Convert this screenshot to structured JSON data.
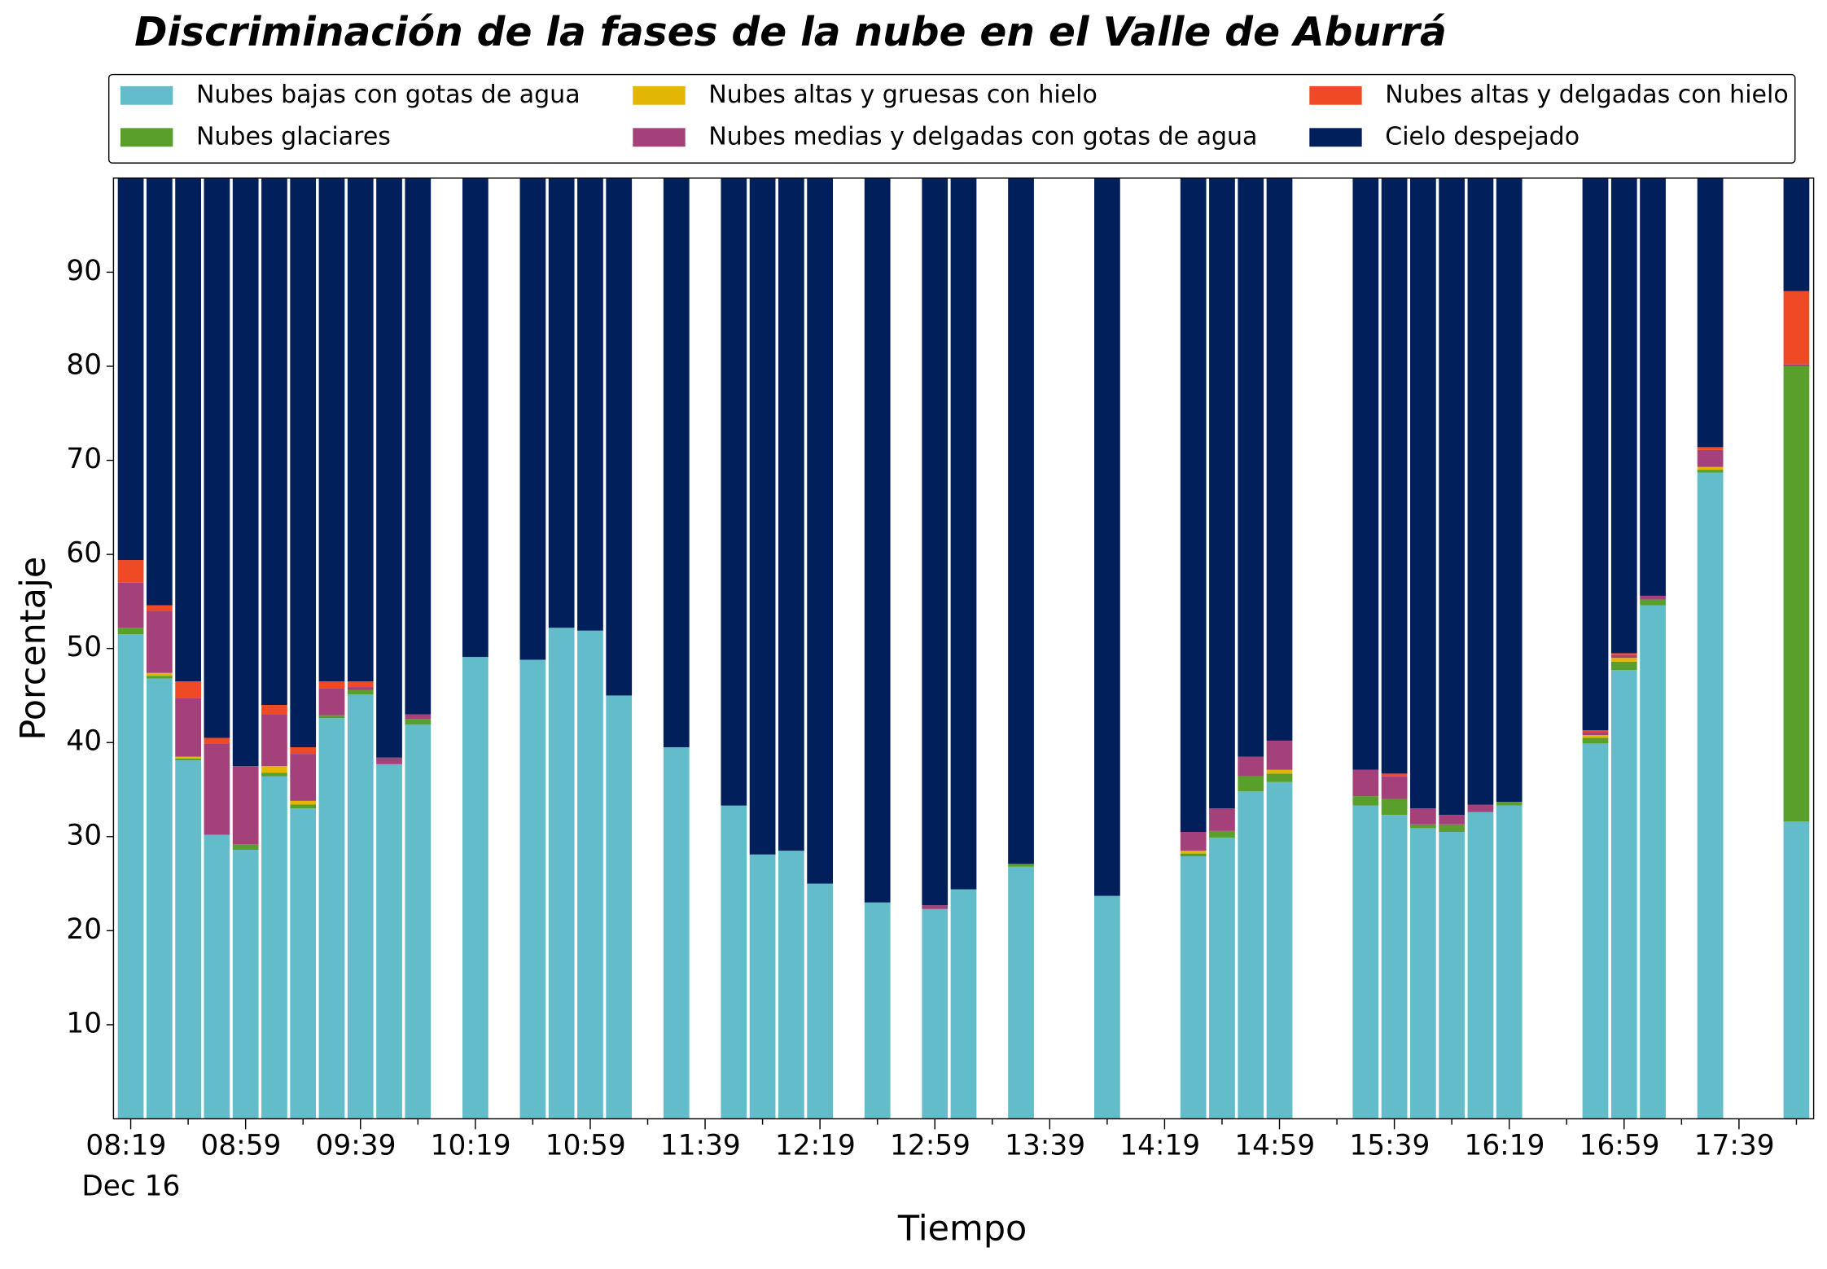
{
  "chart_data": {
    "type": "stacked_bar",
    "title": "Discriminación de la fases de la nube en el Valle de Aburrá",
    "x_label": "Tiempo",
    "y_label": "Porcentaje",
    "x_date_label": "Dec 16",
    "categories": [
      "08:19",
      null,
      null,
      null,
      "08:59",
      null,
      null,
      null,
      "09:39",
      null,
      null,
      null,
      "10:19",
      null,
      null,
      null,
      "10:59",
      null,
      null,
      null,
      "11:39",
      null,
      null,
      null,
      "12:19",
      null,
      null,
      null,
      "12:59",
      null,
      null,
      null,
      "13:39",
      null,
      null,
      null,
      "14:19",
      null,
      null,
      null,
      "14:59",
      null,
      null,
      null,
      "15:39",
      null,
      null,
      null,
      "16:19",
      null,
      null,
      null,
      "16:59",
      null,
      null,
      null,
      "17:39",
      null,
      null
    ],
    "ylim": [
      0,
      100
    ],
    "yticks": [
      10,
      20,
      30,
      40,
      50,
      60,
      70,
      80,
      90
    ],
    "legend": "top",
    "series": [
      {
        "name": "Nubes bajas con gotas de agua",
        "color": "#63bcc9",
        "values": [
          51.5,
          46.8,
          38.1,
          30.2,
          28.6,
          36.4,
          33.0,
          42.6,
          45.1,
          37.7,
          41.9,
          null,
          49.1,
          null,
          48.8,
          52.2,
          51.9,
          45.0,
          null,
          39.5,
          null,
          33.3,
          28.1,
          28.5,
          25.0,
          null,
          23.0,
          null,
          22.3,
          24.4,
          null,
          26.8,
          null,
          null,
          23.7,
          null,
          null,
          27.9,
          29.9,
          34.8,
          35.8,
          null,
          null,
          33.3,
          32.3,
          30.9,
          30.5,
          32.6,
          33.3,
          null,
          null,
          39.9,
          47.7,
          54.6,
          null,
          68.7,
          null,
          null,
          31.6
        ]
      },
      {
        "name": "Nubes glaciares",
        "color": "#5a9e2c",
        "values": [
          0.7,
          0.3,
          0.2,
          0,
          0.6,
          0.4,
          0.4,
          0.3,
          0.5,
          0,
          0.6,
          null,
          0,
          null,
          0,
          0,
          0,
          0,
          null,
          0,
          null,
          0,
          0,
          0,
          0,
          null,
          0,
          null,
          0,
          0,
          null,
          0.3,
          null,
          null,
          0,
          null,
          null,
          0.3,
          0.7,
          1.6,
          0.9,
          null,
          null,
          1.0,
          1.7,
          0.4,
          0.8,
          0,
          0.4,
          null,
          null,
          0.6,
          0.9,
          0.6,
          null,
          0.3,
          null,
          null,
          48.4
        ]
      },
      {
        "name": "Nubes altas y gruesas con hielo",
        "color": "#e3b505",
        "values": [
          0,
          0.3,
          0.2,
          0,
          0,
          0.7,
          0.4,
          0,
          0,
          0,
          0,
          null,
          0,
          null,
          0,
          0,
          0,
          0,
          null,
          0,
          null,
          0,
          0,
          0,
          0,
          null,
          0,
          null,
          0,
          0,
          null,
          0,
          null,
          null,
          0,
          null,
          null,
          0.3,
          0,
          0,
          0.4,
          null,
          null,
          0,
          0,
          0,
          0,
          0,
          0,
          null,
          null,
          0.3,
          0.4,
          0,
          null,
          0.3,
          null,
          null,
          0
        ]
      },
      {
        "name": "Nubes medias y delgadas con gotas de agua",
        "color": "#a4417a",
        "values": [
          4.8,
          6.6,
          6.2,
          9.7,
          8.3,
          5.5,
          5.0,
          2.9,
          0.3,
          0.7,
          0.5,
          null,
          0,
          null,
          0,
          0,
          0,
          0,
          null,
          0,
          null,
          0,
          0,
          0,
          0,
          null,
          0,
          null,
          0.4,
          0,
          null,
          0,
          null,
          null,
          0,
          null,
          null,
          2.0,
          2.4,
          2.1,
          3.1,
          null,
          null,
          2.8,
          2.4,
          1.7,
          1.0,
          0.8,
          0,
          null,
          null,
          0.3,
          0.3,
          0.4,
          null,
          1.8,
          null,
          null,
          0.2
        ]
      },
      {
        "name": "Nubes altas y delgadas con hielo",
        "color": "#ef4a26",
        "values": [
          2.4,
          0.6,
          1.8,
          0.6,
          0,
          1.0,
          0.7,
          0.7,
          0.6,
          0,
          0,
          null,
          0,
          null,
          0,
          0,
          0,
          0,
          null,
          0,
          null,
          0,
          0,
          0,
          0,
          null,
          0,
          null,
          0,
          0,
          null,
          0,
          null,
          null,
          0,
          null,
          null,
          0,
          0,
          0,
          0,
          null,
          null,
          0,
          0.3,
          0,
          0,
          0,
          0,
          null,
          null,
          0.2,
          0.2,
          0,
          null,
          0.3,
          null,
          null,
          7.8
        ]
      },
      {
        "name": "Cielo despejado",
        "color": "#011f5b",
        "values": [
          40.6,
          45.4,
          53.5,
          59.5,
          62.5,
          56.0,
          60.5,
          53.5,
          53.5,
          61.6,
          57.0,
          null,
          50.9,
          null,
          51.2,
          47.8,
          48.1,
          55.0,
          null,
          60.5,
          null,
          66.7,
          71.9,
          71.5,
          75.0,
          null,
          77.0,
          null,
          77.3,
          75.6,
          null,
          72.9,
          null,
          null,
          76.3,
          null,
          null,
          69.5,
          67.0,
          61.5,
          59.8,
          null,
          null,
          62.9,
          63.3,
          67.0,
          67.7,
          66.6,
          66.3,
          null,
          null,
          58.7,
          50.5,
          44.4,
          null,
          28.6,
          null,
          null,
          12.0
        ]
      }
    ]
  }
}
